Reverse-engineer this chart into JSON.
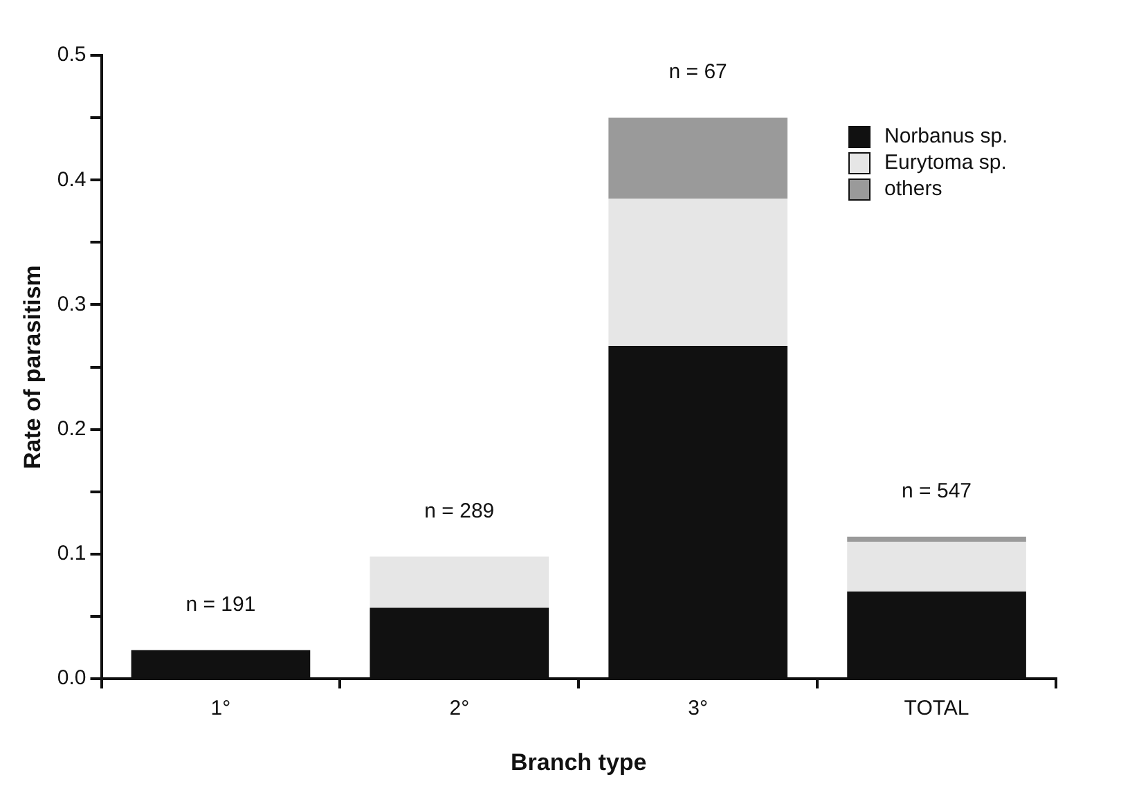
{
  "chart_data": {
    "type": "bar",
    "stacked": true,
    "xlabel": "Branch type",
    "ylabel": "Rate of parasitism",
    "categories": [
      "1°",
      "2°",
      "3°",
      "TOTAL"
    ],
    "series": [
      {
        "name": "Norbanus sp.",
        "color": "#111111",
        "values": [
          0.023,
          0.057,
          0.267,
          0.07
        ]
      },
      {
        "name": "Eurytoma sp.",
        "color": "#e6e6e6",
        "values": [
          0,
          0.041,
          0.118,
          0.04
        ]
      },
      {
        "name": "others",
        "color": "#9a9a9a",
        "values": [
          0,
          0,
          0.065,
          0.004
        ]
      }
    ],
    "ylim": [
      0,
      0.5
    ],
    "yticks": [
      {
        "value": 0,
        "label": "0.0"
      },
      {
        "value": 0.05,
        "label": null
      },
      {
        "value": 0.1,
        "label": "0.1"
      },
      {
        "value": 0.15,
        "label": null
      },
      {
        "value": 0.2,
        "label": "0.2"
      },
      {
        "value": 0.25,
        "label": null
      },
      {
        "value": 0.3,
        "label": "0.3"
      },
      {
        "value": 0.35,
        "label": null
      },
      {
        "value": 0.4,
        "label": "0.4"
      },
      {
        "value": 0.45,
        "label": null
      },
      {
        "value": 0.5,
        "label": "0.5"
      }
    ],
    "annotations": [
      {
        "text": "n = 191",
        "x": "1°",
        "y": 0.023
      },
      {
        "text": "n = 289",
        "x": "2°",
        "y": 0.098
      },
      {
        "text": "n = 67",
        "x": "3°",
        "y": 0.45
      },
      {
        "text": "n = 547",
        "x": "TOTAL",
        "y": 0.114
      }
    ],
    "grid": false,
    "legend": "top right"
  }
}
